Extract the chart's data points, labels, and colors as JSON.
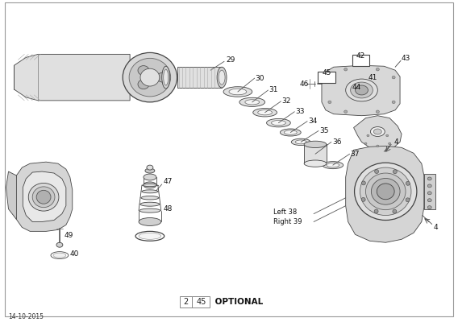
{
  "date_label": "14-10-2015",
  "background_color": "#ffffff",
  "line_color": "#444444",
  "fig_width": 5.68,
  "fig_height": 4.0,
  "dpi": 100,
  "footer_page": "2",
  "footer_number": "45",
  "footer_text": "OPTIONAL"
}
